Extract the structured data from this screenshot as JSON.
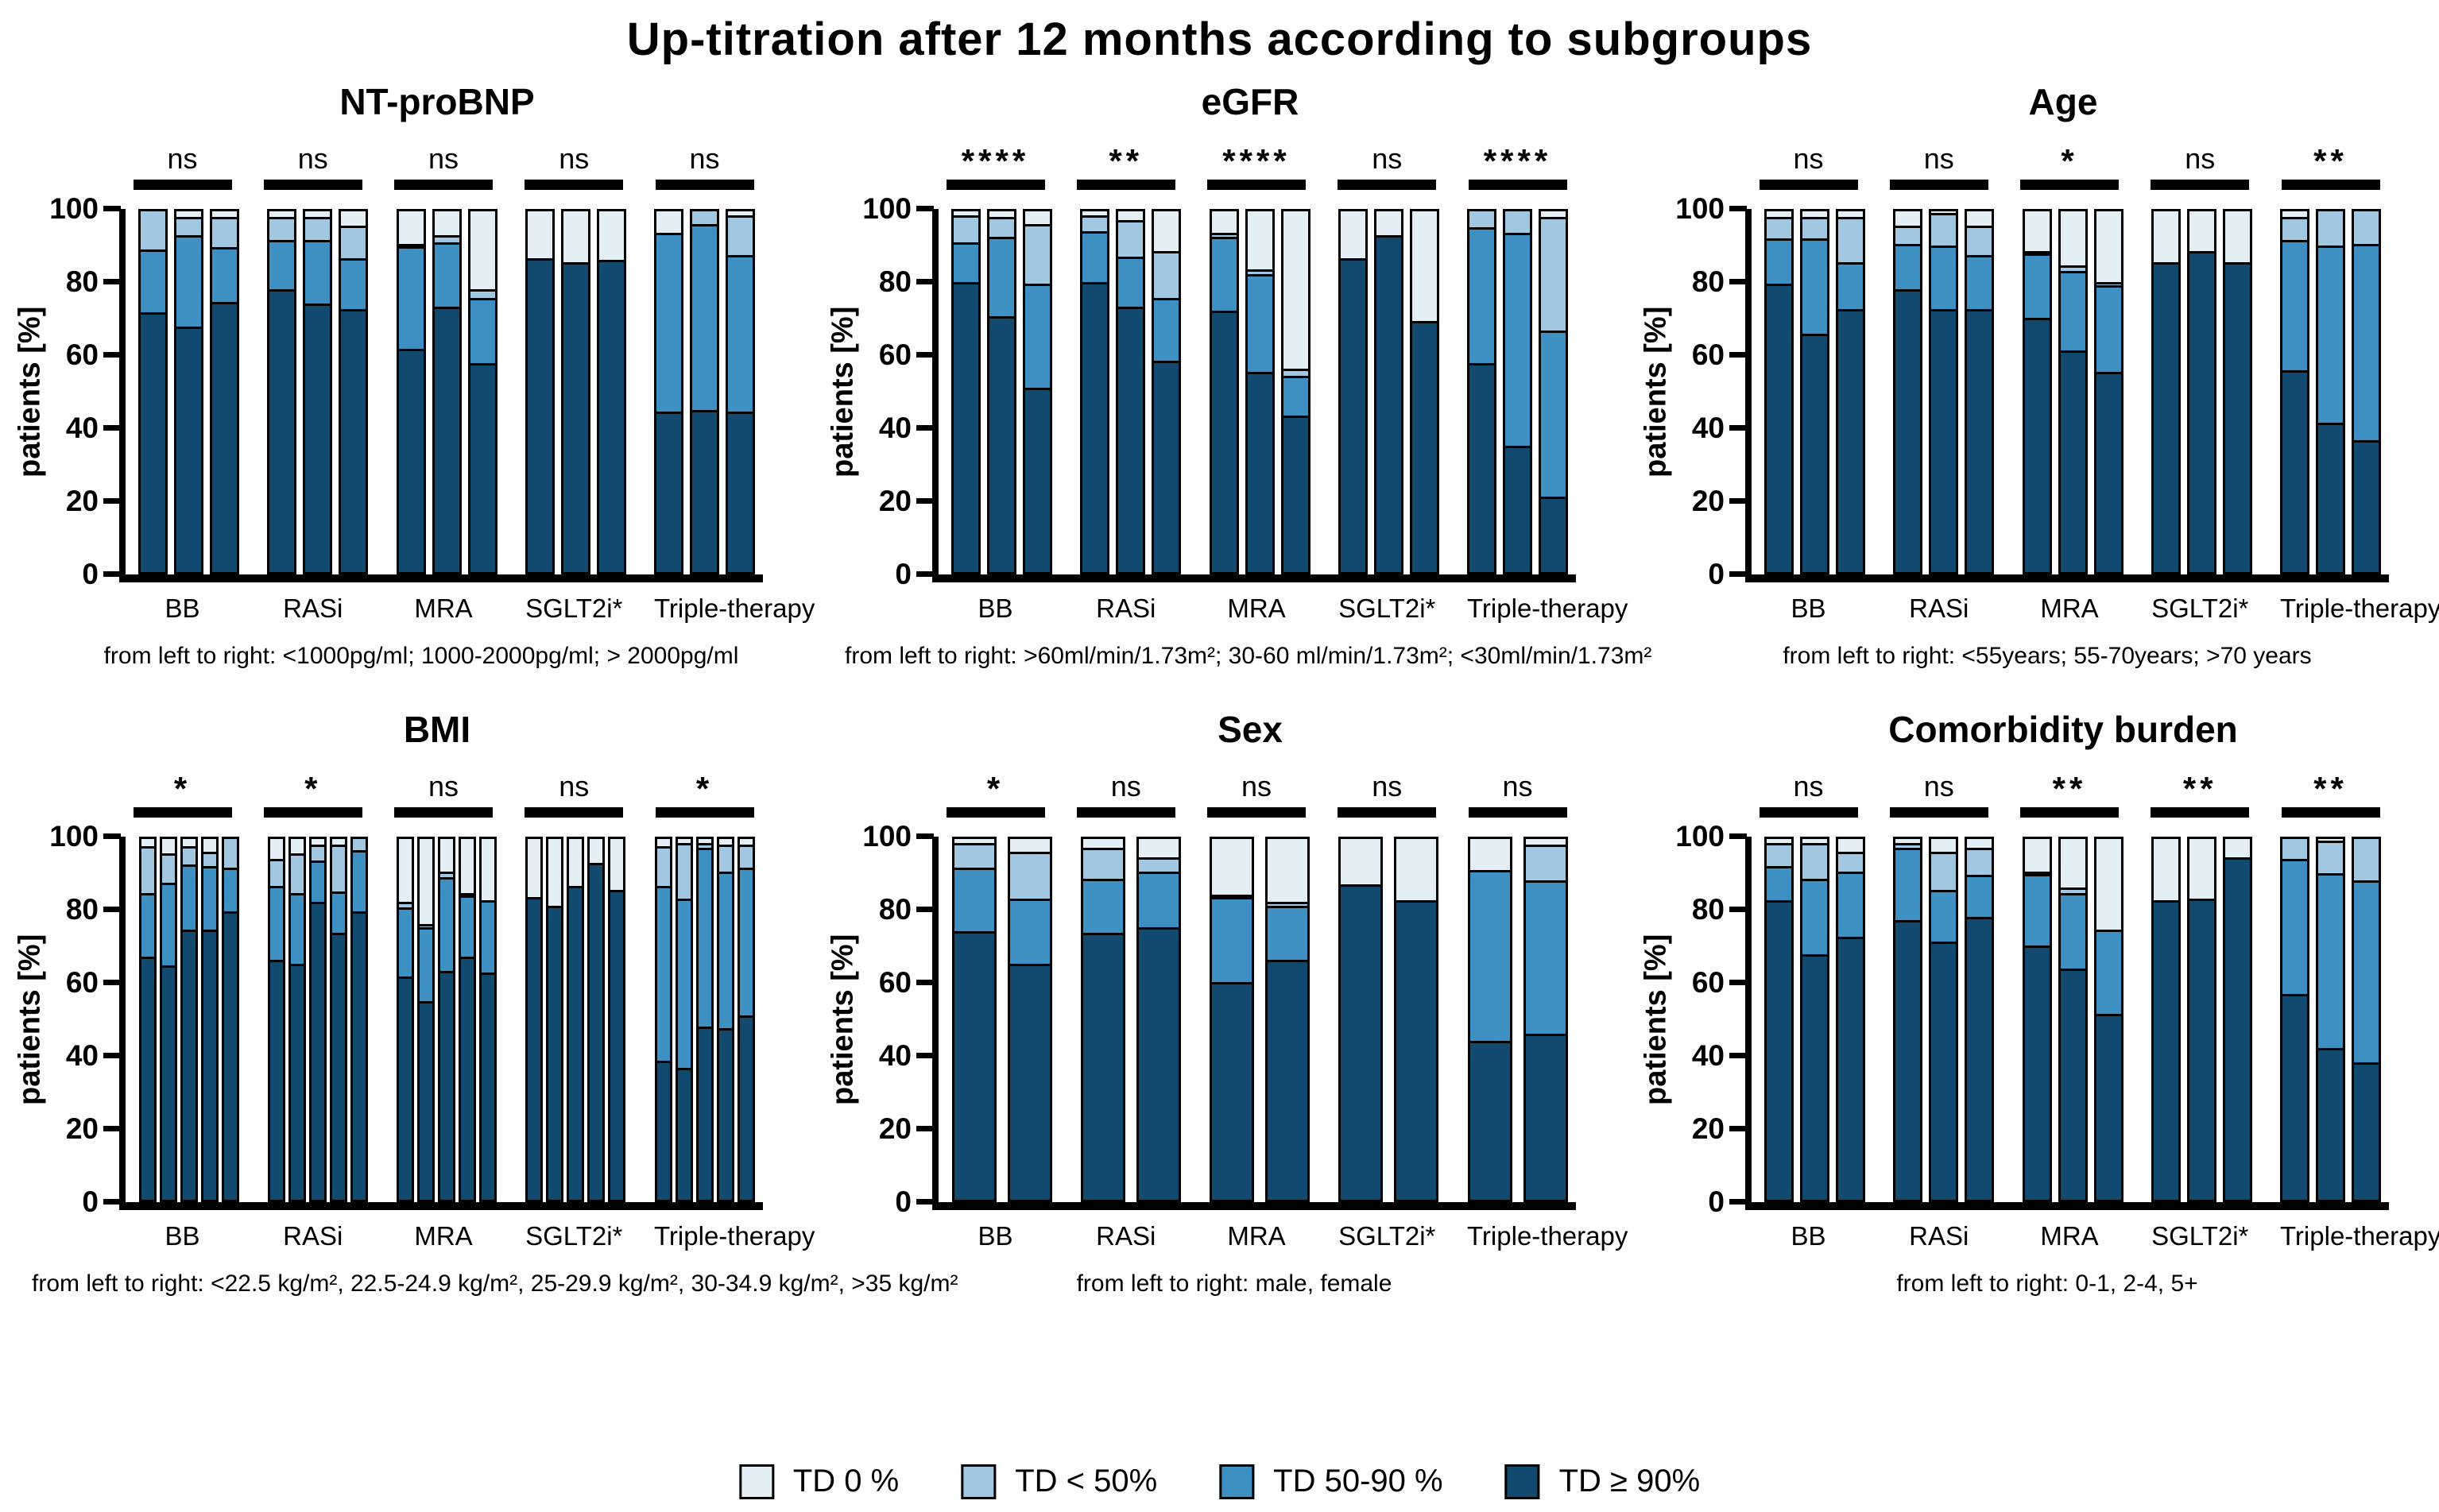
{
  "title": "Up-titration after 12 months according to subgroups",
  "ylabel": "patients [%]",
  "yticks": [
    0,
    20,
    40,
    60,
    80,
    100
  ],
  "group_labels": [
    "BB",
    "RASi",
    "MRA",
    "SGLT2i*",
    "Triple-therapy"
  ],
  "segment_colors": {
    "td_ge90": "#114a6e",
    "td_50_90": "#3e90c3",
    "td_lt50": "#a2c8e1",
    "td_0": "#e3eef5"
  },
  "legend": [
    {
      "label": "TD 0 %",
      "color": "#e3eef5"
    },
    {
      "label": "TD < 50%",
      "color": "#a2c8e1"
    },
    {
      "label": "TD 50-90 %",
      "color": "#3e90c3"
    },
    {
      "label": "TD ≥ 90%",
      "color": "#114a6e"
    }
  ],
  "chart_data": [
    {
      "type": "bar",
      "subtype": "stacked-100",
      "title": "NT-proBNP",
      "footnote": "from left to right: <1000pg/ml; 1000-2000pg/ml; > 2000pg/ml",
      "groups": [
        "BB",
        "RASi",
        "MRA",
        "SGLT2i*",
        "Triple-therapy"
      ],
      "significance": [
        "ns",
        "ns",
        "ns",
        "ns",
        "ns"
      ],
      "stack_labels": [
        "TD ≥ 90%",
        "TD 50-90 %",
        "TD < 50%",
        "TD 0 %"
      ],
      "ylim": [
        0,
        100
      ],
      "bars": [
        [
          [
            72,
            17.5,
            10.5,
            0
          ],
          [
            68,
            25.5,
            5,
            1.5
          ],
          [
            75,
            15,
            8.5,
            1.5
          ]
        ],
        [
          [
            78.5,
            13.5,
            6.5,
            1.5
          ],
          [
            74.5,
            17.5,
            6.5,
            1.5
          ],
          [
            73,
            14,
            9,
            4
          ]
        ],
        [
          [
            62,
            28.5,
            0.5,
            9
          ],
          [
            73.5,
            18,
            2,
            6.5
          ],
          [
            58,
            18,
            2.5,
            21.5
          ]
        ],
        [
          [
            87,
            0,
            0,
            13
          ],
          [
            86,
            0,
            0,
            14
          ],
          [
            86.5,
            0,
            0,
            13.5
          ]
        ],
        [
          [
            44.5,
            49.5,
            0,
            6
          ],
          [
            45,
            51.5,
            3.5,
            0
          ],
          [
            44.5,
            43.5,
            11,
            1
          ]
        ]
      ]
    },
    {
      "type": "bar",
      "subtype": "stacked-100",
      "title": "eGFR",
      "footnote": "from left to right: >60ml/min/1.73m²; 30-60 ml/min/1.73m²; <30ml/min/1.73m²",
      "groups": [
        "BB",
        "RASi",
        "MRA",
        "SGLT2i*",
        "Triple-therapy"
      ],
      "significance": [
        "****",
        "**",
        "****",
        "ns",
        "****"
      ],
      "stack_labels": [
        "TD ≥ 90%",
        "TD 50-90 %",
        "TD < 50%",
        "TD 0 %"
      ],
      "ylim": [
        0,
        100
      ],
      "bars": [
        [
          [
            80.5,
            11,
            7.5,
            1
          ],
          [
            71,
            22,
            5.5,
            1.5
          ],
          [
            51,
            29,
            16.5,
            3.5
          ]
        ],
        [
          [
            80.5,
            14,
            4.5,
            1
          ],
          [
            73.5,
            14,
            10,
            2.5
          ],
          [
            58.5,
            17.5,
            13,
            11
          ]
        ],
        [
          [
            72.5,
            20.5,
            1,
            6
          ],
          [
            55.5,
            27,
            1.5,
            16
          ],
          [
            43.5,
            11,
            2,
            43.5
          ]
        ],
        [
          [
            87,
            0,
            0,
            13
          ],
          [
            93.5,
            0,
            0,
            6.5
          ],
          [
            69.5,
            0,
            0,
            30.5
          ]
        ],
        [
          [
            58,
            37.5,
            4.5,
            0
          ],
          [
            35,
            59,
            6,
            0
          ],
          [
            21,
            46,
            31.5,
            1.5
          ]
        ]
      ]
    },
    {
      "type": "bar",
      "subtype": "stacked-100",
      "title": "Age",
      "footnote": "from left to right: <55years; 55-70years; >70 years",
      "groups": [
        "BB",
        "RASi",
        "MRA",
        "SGLT2i*",
        "Triple-therapy"
      ],
      "significance": [
        "ns",
        "ns",
        "*",
        "ns",
        "**"
      ],
      "stack_labels": [
        "TD ≥ 90%",
        "TD 50-90 %",
        "TD < 50%",
        "TD 0 %"
      ],
      "ylim": [
        0,
        100
      ],
      "bars": [
        [
          [
            80,
            12.5,
            6,
            1.5
          ],
          [
            66,
            26.5,
            6,
            1.5
          ],
          [
            73,
            13,
            12.5,
            1.5
          ]
        ],
        [
          [
            78.5,
            12.5,
            5,
            4
          ],
          [
            73,
            17.5,
            9,
            0.5
          ],
          [
            73,
            15,
            8,
            4
          ]
        ],
        [
          [
            70.5,
            18,
            0.5,
            11
          ],
          [
            61.5,
            22,
            1.5,
            15
          ],
          [
            55.5,
            24,
            1,
            19.5
          ]
        ],
        [
          [
            86,
            0,
            0,
            14
          ],
          [
            89,
            0,
            0,
            11
          ],
          [
            86,
            0,
            0,
            14
          ]
        ],
        [
          [
            56,
            36,
            6.5,
            1.5
          ],
          [
            41.5,
            49,
            9.5,
            0
          ],
          [
            36.5,
            54.5,
            9,
            0
          ]
        ]
      ]
    },
    {
      "type": "bar",
      "subtype": "stacked-100",
      "title": "BMI",
      "footnote": "from left to right: <22.5 kg/m², 22.5-24.9 kg/m², 25-29.9 kg/m², 30-34.9 kg/m², >35 kg/m²",
      "groups": [
        "BB",
        "RASi",
        "MRA",
        "SGLT2i*",
        "Triple-therapy"
      ],
      "significance": [
        "*",
        "*",
        "ns",
        "ns",
        "*"
      ],
      "stack_labels": [
        "TD ≥ 90%",
        "TD 50-90 %",
        "TD < 50%",
        "TD 0 %"
      ],
      "ylim": [
        0,
        100
      ],
      "bars": [
        [
          [
            67.5,
            17.5,
            13,
            2
          ],
          [
            65,
            23,
            8,
            4
          ],
          [
            75,
            18,
            5,
            2
          ],
          [
            75,
            17.5,
            4,
            3.5
          ],
          [
            80,
            12,
            8,
            0
          ]
        ],
        [
          [
            66.5,
            20.5,
            7.5,
            5.5
          ],
          [
            65.5,
            19.5,
            11,
            4
          ],
          [
            82.5,
            11.5,
            4.5,
            1.5
          ],
          [
            74,
            11.5,
            13,
            1.5
          ],
          [
            80,
            17,
            3,
            0
          ]
        ],
        [
          [
            62,
            19,
            1.5,
            17.5
          ],
          [
            55,
            20.5,
            1,
            23.5
          ],
          [
            63.5,
            26,
            1.5,
            9
          ],
          [
            67.5,
            17,
            0.5,
            15
          ],
          [
            63,
            20,
            0,
            17
          ]
        ],
        [
          [
            84,
            0,
            0,
            16
          ],
          [
            81.5,
            0,
            0,
            18.5
          ],
          [
            87,
            0,
            0,
            13
          ],
          [
            93.5,
            0,
            0,
            6.5
          ],
          [
            86,
            0,
            0,
            14
          ]
        ],
        [
          [
            38.5,
            48.5,
            11,
            2
          ],
          [
            36.5,
            47,
            15.5,
            1
          ],
          [
            48,
            49.5,
            1.5,
            1
          ],
          [
            47.5,
            43.5,
            7.5,
            1.5
          ],
          [
            51,
            41,
            6.5,
            1.5
          ]
        ]
      ]
    },
    {
      "type": "bar",
      "subtype": "stacked-100",
      "title": "Sex",
      "footnote": "from left to right: male, female",
      "groups": [
        "BB",
        "RASi",
        "MRA",
        "SGLT2i*",
        "Triple-therapy"
      ],
      "significance": [
        "*",
        "ns",
        "ns",
        "ns",
        "ns"
      ],
      "stack_labels": [
        "TD ≥ 90%",
        "TD 50-90 %",
        "TD < 50%",
        "TD 0 %"
      ],
      "ylim": [
        0,
        100
      ],
      "bars": [
        [
          [
            74.5,
            17.5,
            7,
            1
          ],
          [
            65.5,
            18,
            13,
            3.5
          ]
        ],
        [
          [
            74,
            15,
            8.5,
            2.5
          ],
          [
            75.5,
            15.5,
            4,
            5
          ]
        ],
        [
          [
            60.5,
            23.5,
            0.5,
            15.5
          ],
          [
            66.5,
            15,
            1,
            17.5
          ]
        ],
        [
          [
            87.5,
            0,
            0,
            12.5
          ],
          [
            83,
            0,
            0,
            17
          ]
        ],
        [
          [
            44,
            47.5,
            0,
            8.5
          ],
          [
            46,
            42.5,
            10,
            1.5
          ]
        ]
      ]
    },
    {
      "type": "bar",
      "subtype": "stacked-100",
      "title": "Comorbidity burden",
      "footnote": "from left to right: 0-1, 2-4, 5+",
      "groups": [
        "BB",
        "RASi",
        "MRA",
        "SGLT2i*",
        "Triple-therapy"
      ],
      "significance": [
        "ns",
        "ns",
        "**",
        "**",
        "**"
      ],
      "stack_labels": [
        "TD ≥ 90%",
        "TD 50-90 %",
        "TD < 50%",
        "TD 0 %"
      ],
      "ylim": [
        0,
        100
      ],
      "bars": [
        [
          [
            83,
            9.5,
            6.5,
            1
          ],
          [
            68,
            21,
            10,
            1
          ],
          [
            73,
            18,
            5.5,
            3.5
          ]
        ],
        [
          [
            77.5,
            20,
            1.5,
            1
          ],
          [
            71.5,
            14.5,
            10.5,
            3.5
          ],
          [
            78.5,
            11.5,
            7.5,
            2.5
          ]
        ],
        [
          [
            70.5,
            20,
            0.5,
            9
          ],
          [
            64,
            21,
            1.5,
            13.5
          ],
          [
            51.5,
            23.5,
            0,
            25
          ]
        ],
        [
          [
            83,
            0,
            0,
            17
          ],
          [
            83.5,
            0,
            0,
            16.5
          ],
          [
            95,
            0,
            0,
            5
          ]
        ],
        [
          [
            57,
            37.5,
            5.5,
            0
          ],
          [
            42,
            48.5,
            9,
            0.5
          ],
          [
            38,
            50.5,
            11.5,
            0
          ]
        ]
      ]
    }
  ]
}
